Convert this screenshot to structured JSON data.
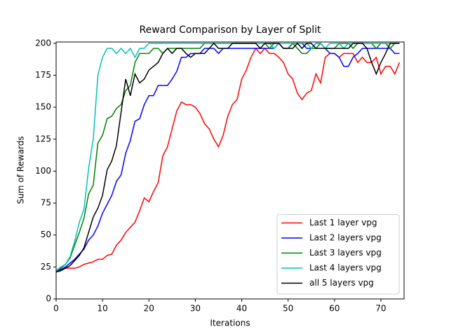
{
  "chart_data": {
    "type": "line",
    "title": "Reward Comparison by Layer of Split",
    "x_label": "Iterations",
    "y_label": "Sum of Rewards",
    "x": [
      0,
      1,
      2,
      3,
      4,
      5,
      6,
      7,
      8,
      9,
      10,
      11,
      12,
      13,
      14,
      15,
      16,
      17,
      18,
      19,
      20,
      21,
      22,
      23,
      24,
      25,
      26,
      27,
      28,
      29,
      30,
      31,
      32,
      33,
      34,
      35,
      36,
      37,
      38,
      39,
      40,
      41,
      42,
      43,
      44,
      45,
      46,
      47,
      48,
      49,
      50,
      51,
      52,
      53,
      54,
      55,
      56,
      57,
      58,
      59,
      60,
      61,
      62,
      63,
      64,
      65,
      66,
      67,
      68,
      69,
      70,
      71,
      72,
      73,
      74
    ],
    "series": [
      {
        "name": "Last 1 layer vpg",
        "color": "#ff0000",
        "values": [
          21,
          23,
          24,
          24,
          24,
          25,
          27,
          28,
          29,
          31,
          31,
          34,
          35,
          42,
          46,
          52,
          56,
          60,
          69,
          79,
          76,
          84,
          91,
          112,
          119,
          133,
          147,
          154,
          152,
          152,
          150,
          145,
          137,
          133,
          125,
          119,
          128,
          143,
          152,
          156,
          172,
          179,
          189,
          196,
          192,
          196,
          192,
          192,
          189,
          185,
          176,
          172,
          161,
          156,
          161,
          163,
          176,
          169,
          189,
          192,
          192,
          189,
          192,
          192,
          192,
          185,
          189,
          185,
          185,
          189,
          176,
          182,
          182,
          176,
          185
        ]
      },
      {
        "name": "Last 2 layers vpg",
        "color": "#0000ff",
        "values": [
          22,
          23,
          25,
          28,
          31,
          35,
          39,
          46,
          50,
          57,
          67,
          74,
          81,
          92,
          97,
          114,
          124,
          139,
          141,
          152,
          159,
          159,
          167,
          167,
          167,
          172,
          178,
          189,
          189,
          192,
          192,
          192,
          196,
          196,
          196,
          192,
          196,
          196,
          196,
          196,
          196,
          196,
          196,
          196,
          196,
          196,
          196,
          196,
          200,
          196,
          196,
          200,
          200,
          200,
          196,
          196,
          200,
          200,
          196,
          192,
          192,
          189,
          182,
          182,
          189,
          192,
          196,
          196,
          196,
          196,
          196,
          196,
          196,
          192,
          192
        ]
      },
      {
        "name": "Last 3 layers vpg",
        "color": "#008000",
        "values": [
          22,
          24,
          27,
          32,
          42,
          52,
          63,
          82,
          89,
          122,
          128,
          141,
          143,
          149,
          152,
          163,
          167,
          185,
          192,
          192,
          192,
          196,
          196,
          192,
          196,
          196,
          196,
          196,
          196,
          196,
          196,
          196,
          200,
          200,
          200,
          200,
          200,
          200,
          200,
          200,
          200,
          200,
          200,
          200,
          200,
          200,
          196,
          200,
          200,
          196,
          196,
          200,
          196,
          192,
          192,
          196,
          196,
          200,
          196,
          196,
          196,
          200,
          200,
          200,
          196,
          200,
          200,
          200,
          200,
          196,
          200,
          200,
          196,
          200,
          200
        ]
      },
      {
        "name": "Last 4 layers vpg",
        "color": "#00bfbf",
        "values": [
          22,
          25,
          27,
          33,
          45,
          60,
          70,
          102,
          125,
          175,
          189,
          196,
          196,
          192,
          196,
          192,
          196,
          189,
          196,
          196,
          200,
          200,
          200,
          200,
          200,
          200,
          200,
          200,
          200,
          200,
          200,
          200,
          200,
          200,
          200,
          200,
          200,
          200,
          200,
          200,
          200,
          200,
          200,
          200,
          200,
          200,
          200,
          196,
          200,
          200,
          200,
          200,
          200,
          200,
          200,
          196,
          200,
          200,
          196,
          200,
          200,
          200,
          196,
          200,
          200,
          200,
          200,
          200,
          200,
          200,
          200,
          200,
          200,
          200,
          200
        ]
      },
      {
        "name": "all 5 layers vpg",
        "color": "#000000",
        "values": [
          21,
          22,
          24,
          26,
          30,
          34,
          40,
          52,
          64,
          71,
          81,
          101,
          108,
          120,
          146,
          172,
          159,
          176,
          169,
          172,
          179,
          182,
          185,
          192,
          196,
          192,
          196,
          196,
          192,
          189,
          192,
          192,
          192,
          196,
          200,
          196,
          196,
          196,
          200,
          200,
          200,
          200,
          200,
          200,
          196,
          200,
          200,
          200,
          200,
          196,
          196,
          196,
          200,
          196,
          200,
          200,
          196,
          196,
          196,
          196,
          196,
          196,
          196,
          196,
          200,
          200,
          200,
          196,
          185,
          176,
          185,
          192,
          200,
          200,
          200
        ]
      }
    ],
    "xlim": [
      0,
      75
    ],
    "ylim": [
      0,
      201
    ],
    "xticks": [
      0,
      10,
      20,
      30,
      40,
      50,
      60,
      70
    ],
    "yticks": [
      0,
      25,
      50,
      75,
      100,
      125,
      150,
      175,
      200
    ],
    "grid": false,
    "legend": "lower right"
  }
}
